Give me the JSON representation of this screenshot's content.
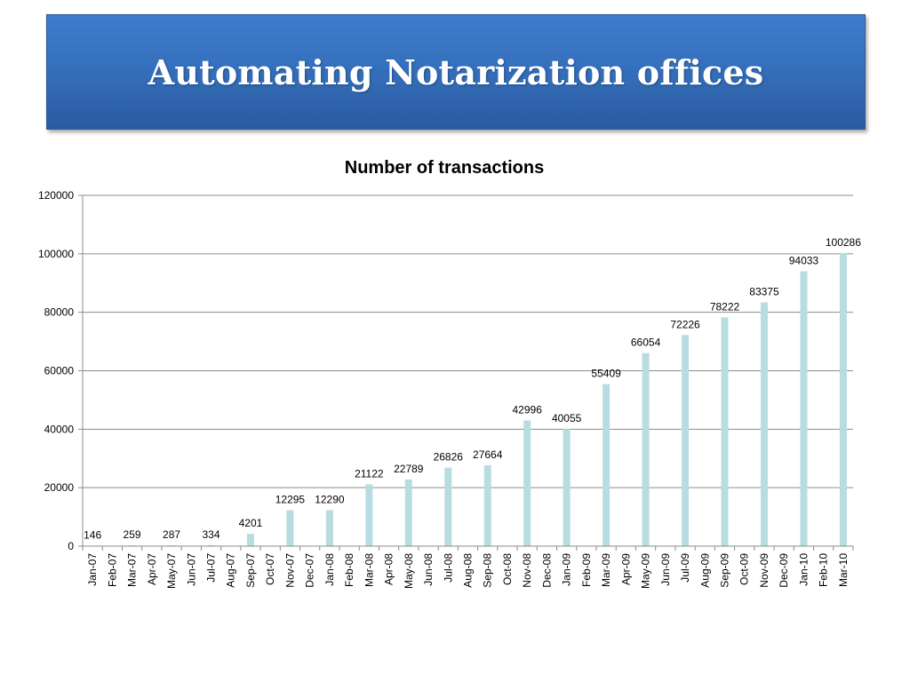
{
  "slide": {
    "title": "Automating Notarization offices"
  },
  "chart_data": {
    "type": "bar",
    "title": "Number of transactions",
    "xlabel": "",
    "ylabel": "",
    "ylim": [
      0,
      120000
    ],
    "y_ticks": [
      0,
      20000,
      40000,
      60000,
      80000,
      100000,
      120000
    ],
    "grid": true,
    "legend": "none",
    "bar_color": "#b7dde0",
    "categories": [
      "Jan-07",
      "Feb-07",
      "Mar-07",
      "Apr-07",
      "May-07",
      "Jun-07",
      "Jul-07",
      "Aug-07",
      "Sep-07",
      "Oct-07",
      "Nov-07",
      "Dec-07",
      "Jan-08",
      "Feb-08",
      "Mar-08",
      "Apr-08",
      "May-08",
      "Jun-08",
      "Jul-08",
      "Aug-08",
      "Sep-08",
      "Oct-08",
      "Nov-08",
      "Dec-08",
      "Jan-09",
      "Feb-09",
      "Mar-09",
      "Apr-09",
      "May-09",
      "Jun-09",
      "Jul-09",
      "Aug-09",
      "Sep-09",
      "Oct-09",
      "Nov-09",
      "Dec-09",
      "Jan-10",
      "Feb-10",
      "Mar-10"
    ],
    "values": [
      146,
      null,
      259,
      null,
      287,
      null,
      334,
      null,
      4201,
      null,
      12295,
      null,
      12290,
      null,
      21122,
      null,
      22789,
      null,
      26826,
      null,
      27664,
      null,
      42996,
      null,
      40055,
      null,
      55409,
      null,
      66054,
      null,
      72226,
      null,
      78222,
      null,
      83375,
      null,
      94033,
      null,
      100286
    ]
  }
}
